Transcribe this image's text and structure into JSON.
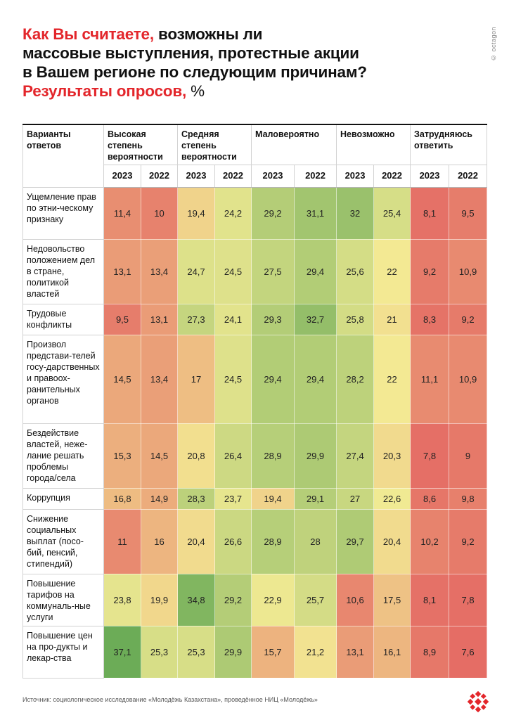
{
  "header": {
    "title_red_1": "Как Вы считаете,",
    "title_black_1": "возможны ли",
    "title_line_2": "массовые выступления, протестные акции",
    "title_line_3": "в Вашем регионе по следующим причинам?",
    "title_red_2": "Результаты опросов,",
    "title_pct": "%",
    "watermark": "© octagon"
  },
  "footer": {
    "source": "Источник: социологическое исследование «Молодёжь Казахстана», проведённое НИЦ «Молодёжь»"
  },
  "colors": {
    "red": "#e3262b",
    "low": "#e46863",
    "mid": "#f3eb94",
    "high": "#68aa55"
  },
  "chart_data": {
    "type": "table",
    "title": "Как Вы считаете, возможны ли массовые выступления, протестные акции в Вашем регионе по следующим причинам? Результаты опросов, %",
    "row_header": "Варианты ответов",
    "columns": [
      "Высокая степень вероятности",
      "Средняя степень вероятности",
      "Маловероятно",
      "Невозможно",
      "Затрудняюсь ответить"
    ],
    "years": [
      "2023",
      "2022"
    ],
    "color_scale": [
      7,
      37.5
    ],
    "rows": [
      {
        "label": "Ущемление прав по этни-ческому признаку",
        "values": [
          "11,4",
          "10",
          "19,4",
          "24,2",
          "29,2",
          "31,1",
          "32",
          "25,4",
          "8,1",
          "9,5"
        ]
      },
      {
        "label": "Недовольство положением дел в стране, политикой властей",
        "values": [
          "13,1",
          "13,4",
          "24,7",
          "24,5",
          "27,5",
          "29,4",
          "25,6",
          "22",
          "9,2",
          "10,9"
        ]
      },
      {
        "label": "Трудовые конфликты",
        "values": [
          "9,5",
          "13,1",
          "27,3",
          "24,1",
          "29,3",
          "32,7",
          "25,8",
          "21",
          "8,3",
          "9,2"
        ]
      },
      {
        "label": "Произвол представи-телей госу-дарственных и правоох-ранительных органов",
        "values": [
          "14,5",
          "13,4",
          "17",
          "24,5",
          "29,4",
          "29,4",
          "28,2",
          "22",
          "11,1",
          "10,9"
        ]
      },
      {
        "label": "Бездействие властей, неже-лание решать проблемы города/села",
        "values": [
          "15,3",
          "14,5",
          "20,8",
          "26,4",
          "28,9",
          "29,9",
          "27,4",
          "20,3",
          "7,8",
          "9"
        ]
      },
      {
        "label": "Коррупция",
        "values": [
          "16,8",
          "14,9",
          "28,3",
          "23,7",
          "19,4",
          "29,1",
          "27",
          "22,6",
          "8,6",
          "9,8"
        ]
      },
      {
        "label": "Снижение социальных выплат (посо-бий, пенсий, стипендий)",
        "values": [
          "11",
          "16",
          "20,4",
          "26,6",
          "28,9",
          "28",
          "29,7",
          "20,4",
          "10,2",
          "9,2"
        ]
      },
      {
        "label": "Повышение тарифов на коммуналь-ные услуги",
        "values": [
          "23,8",
          "19,9",
          "34,8",
          "29,2",
          "22,9",
          "25,7",
          "10,6",
          "17,5",
          "8,1",
          "7,8"
        ]
      },
      {
        "label": "Повышение цен на про-дукты и лекар-ства",
        "values": [
          "37,1",
          "25,3",
          "25,3",
          "29,9",
          "15,7",
          "21,2",
          "13,1",
          "16,1",
          "8,9",
          "7,6"
        ]
      }
    ]
  }
}
